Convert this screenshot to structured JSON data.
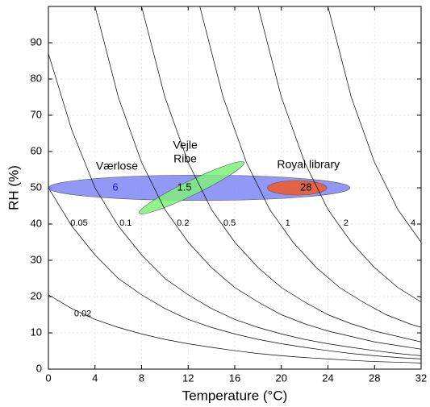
{
  "chart_data": {
    "type": "line",
    "x_label": "Temperature (°C)",
    "y_label": "RH (%)",
    "xlim": [
      0,
      32
    ],
    "ylim": [
      0,
      100
    ],
    "xticks": [
      0,
      4,
      8,
      12,
      16,
      20,
      24,
      28,
      32
    ],
    "yticks": [
      0,
      10,
      20,
      30,
      40,
      50,
      60,
      70,
      80,
      90
    ],
    "grid": true,
    "series": [
      {
        "name": "0.02",
        "color": "#000000",
        "x": [
          0,
          2,
          4,
          6,
          8,
          10,
          12,
          14,
          16,
          18,
          20,
          22,
          24,
          26,
          28,
          30,
          32
        ],
        "values": [
          20.5,
          16.7,
          13.7,
          11.5,
          9.7,
          8.2,
          7,
          6,
          5.1,
          4.3,
          3.7,
          3.2,
          2.8,
          2.4,
          2.1,
          1.9,
          1.7
        ]
      },
      {
        "name": "0.05",
        "color": "#000000",
        "x": [
          0,
          2,
          4,
          6,
          8,
          10,
          12,
          14,
          16,
          18,
          20,
          22,
          24,
          26,
          28,
          30,
          32
        ],
        "values": [
          50,
          39.5,
          31.5,
          25,
          20.5,
          16.7,
          13.7,
          11.5,
          9.7,
          8.2,
          7,
          6,
          5.1,
          4.3,
          3.7,
          3.2,
          2.8
        ]
      },
      {
        "name": "0.1",
        "color": "#000000",
        "x": [
          0,
          2,
          4,
          6,
          8,
          10,
          12,
          14,
          16,
          18,
          20,
          22,
          24,
          26,
          28,
          30,
          32
        ],
        "values": [
          87,
          66,
          50,
          39.5,
          31.5,
          25,
          20.5,
          16.7,
          13.7,
          11.5,
          9.7,
          8.2,
          7,
          6,
          5.1,
          4.3,
          3.7
        ]
      },
      {
        "name": "0.2",
        "color": "#000000",
        "x": [
          4,
          6,
          8,
          10,
          12,
          14,
          16,
          18,
          20,
          22,
          24,
          26,
          28,
          30,
          32
        ],
        "values": [
          100,
          75,
          57,
          44,
          35,
          28,
          22.5,
          18.5,
          15,
          12.5,
          10.5,
          9,
          7.5,
          6.5,
          5.5
        ]
      },
      {
        "name": "0.5",
        "color": "#000000",
        "x": [
          8,
          10,
          12,
          14,
          16,
          18,
          20,
          22,
          24,
          26,
          28,
          30,
          32
        ],
        "values": [
          100,
          75,
          57,
          44,
          35,
          28,
          22.5,
          18.5,
          15,
          12.5,
          10.5,
          9,
          7.5
        ]
      },
      {
        "name": "1",
        "color": "#000000",
        "x": [
          13,
          15,
          17,
          19,
          21,
          23,
          25,
          27,
          29,
          31,
          32
        ],
        "values": [
          100,
          75,
          57,
          44,
          35,
          28,
          22.5,
          18.5,
          15,
          12.5,
          11.5
        ]
      },
      {
        "name": "2",
        "color": "#000000",
        "x": [
          18,
          20,
          22,
          24,
          26,
          28,
          30,
          32
        ],
        "values": [
          100,
          75,
          57,
          44,
          35,
          28,
          22.5,
          18.5
        ]
      },
      {
        "name": "4",
        "color": "#000000",
        "x": [
          24,
          26,
          28,
          30,
          32
        ],
        "values": [
          100,
          75,
          57,
          44,
          35
        ]
      }
    ],
    "regions": [
      {
        "name": [
          "Værlose"
        ],
        "value": 6,
        "color": "#7f86f4",
        "value_color": "#1a1ad8",
        "rotated": false,
        "x_range": [
          0,
          25.9
        ],
        "y_range": [
          46.5,
          53.5
        ]
      },
      {
        "name": [
          "Vejle",
          "Ribe"
        ],
        "value": 1.5,
        "color": "#7ef07a",
        "value_color": "#000000",
        "rotated": true,
        "x_range": [
          7.8,
          16.8
        ],
        "y_range": [
          43,
          57
        ]
      },
      {
        "name": [
          "Royal library"
        ],
        "value": 28,
        "color": "#f05a28",
        "value_color": "#000000",
        "rotated": false,
        "x_range": [
          18.8,
          23.9
        ],
        "y_range": [
          48,
          52
        ]
      }
    ]
  }
}
